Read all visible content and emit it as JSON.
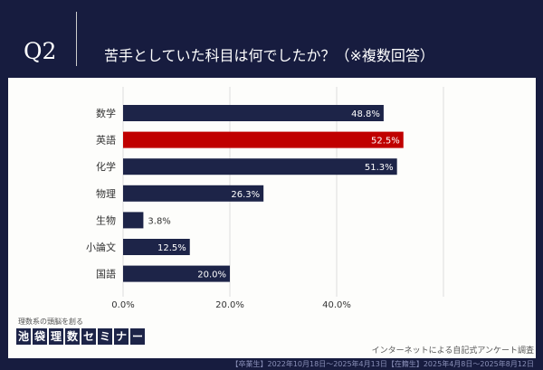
{
  "header": {
    "q": "Q2",
    "title": "苦手としていた科目は何でしたか？（※複数回答）"
  },
  "chart_data": {
    "type": "bar",
    "orientation": "horizontal",
    "categories": [
      "数学",
      "英語",
      "化学",
      "物理",
      "生物",
      "小論文",
      "国語"
    ],
    "values": [
      48.8,
      52.5,
      51.3,
      26.3,
      3.8,
      12.5,
      20.0
    ],
    "labels": [
      "48.8%",
      "52.5%",
      "51.3%",
      "26.3%",
      "3.8%",
      "12.5%",
      "20.0%"
    ],
    "xticks": [
      "0.0%",
      "20.0%",
      "40.0%"
    ],
    "xlim": [
      0,
      60
    ],
    "grid": true,
    "colors": {
      "default": "#1d2448",
      "highlight": "#c00000"
    },
    "highlight": "英語"
  },
  "brand": {
    "tagline": "理数系の頭脳を創る",
    "chars": [
      "池",
      "袋",
      "理",
      "数",
      "セ",
      "ミ",
      "ナ",
      "ー"
    ]
  },
  "footer": {
    "note": "インターネットによる自記式アンケート調査",
    "period": "【卒業生】2022年10月18日～2025年4月13日【在籍生】2025年4月8日～2025年8月12日"
  }
}
